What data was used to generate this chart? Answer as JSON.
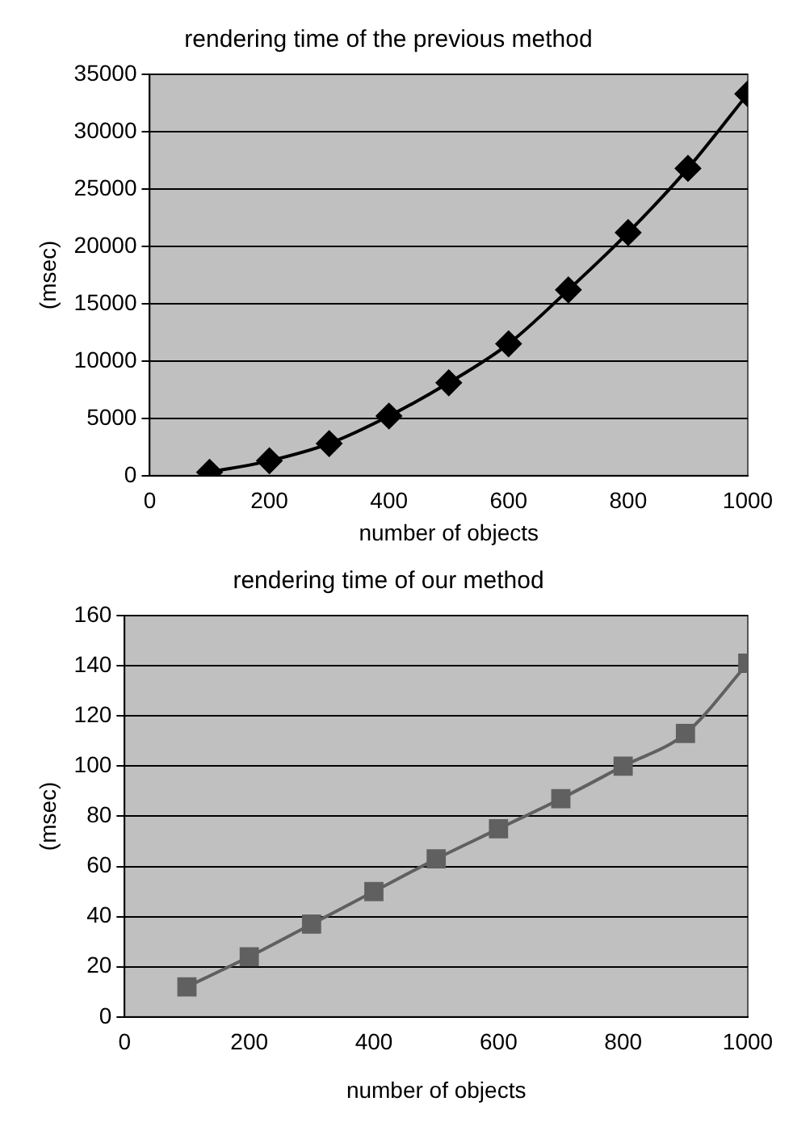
{
  "chart_data": [
    {
      "type": "line",
      "title": "rendering time of the previous method",
      "xlabel": "number of objects",
      "ylabel": "(msec)",
      "x": [
        100,
        200,
        300,
        400,
        500,
        600,
        700,
        800,
        900,
        1000
      ],
      "series": [
        {
          "color": "#000000",
          "values": [
            300,
            1300,
            2800,
            5200,
            8100,
            11500,
            16200,
            21200,
            26800,
            33300
          ]
        }
      ],
      "xlim": [
        0,
        1000
      ],
      "xticks": [
        0,
        200,
        400,
        600,
        800,
        1000
      ],
      "ylim": [
        0,
        35000
      ],
      "yticks": [
        0,
        5000,
        10000,
        15000,
        20000,
        25000,
        30000,
        35000
      ],
      "grid": "y",
      "legend": false,
      "marker": "diamond",
      "line_style": "solid"
    },
    {
      "type": "line",
      "title": "rendering time of our method",
      "xlabel": "number of objects",
      "ylabel": "(msec)",
      "x": [
        100,
        200,
        300,
        400,
        500,
        600,
        700,
        800,
        900,
        1000
      ],
      "series": [
        {
          "color": "#606060",
          "values": [
            12,
            24,
            37,
            50,
            63,
            75,
            87,
            100,
            113,
            141
          ]
        }
      ],
      "xlim": [
        0,
        1000
      ],
      "xticks": [
        0,
        200,
        400,
        600,
        800,
        1000
      ],
      "ylim": [
        0,
        160
      ],
      "yticks": [
        0,
        20,
        40,
        60,
        80,
        100,
        120,
        140,
        160
      ],
      "grid": "y",
      "legend": false,
      "marker": "square",
      "line_style": "solid"
    }
  ]
}
